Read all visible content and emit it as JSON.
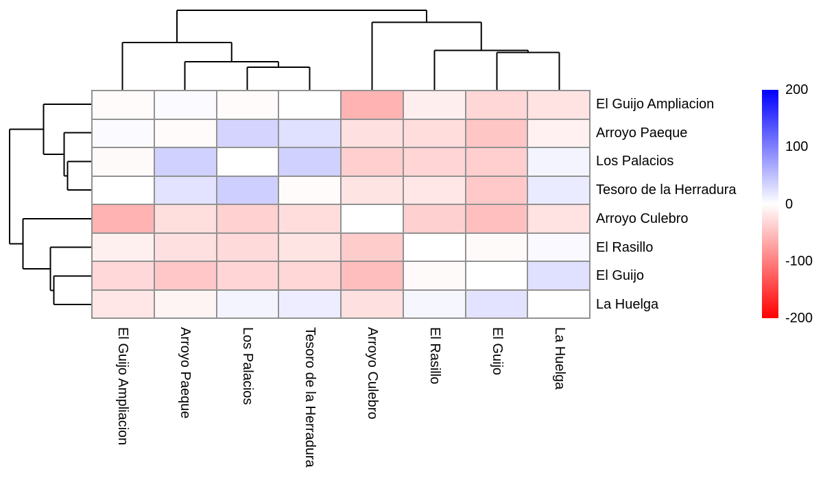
{
  "chart_data": {
    "type": "heatmap",
    "title": "",
    "rows": [
      "El Guijo Ampliacion",
      "Arroyo Paeque",
      "Los Palacios",
      "Tesoro de la Herradura",
      "Arroyo Culebro",
      "El Rasillo",
      "El Guijo",
      "La Huelga"
    ],
    "columns": [
      "El Guijo Ampliacion",
      "Arroyo Paeque",
      "Los Palacios",
      "Tesoro de la Herradura",
      "Arroyo Culebro",
      "El Rasillo",
      "El Guijo",
      "La Huelga"
    ],
    "values": [
      [
        -3,
        3,
        -3,
        0,
        -60,
        -13,
        -31,
        -22
      ],
      [
        3,
        -3,
        34,
        24,
        -24,
        -27,
        -45,
        -11
      ],
      [
        -4,
        36,
        0,
        36,
        -38,
        -33,
        -38,
        9
      ],
      [
        0,
        22,
        38,
        -3,
        -21,
        -19,
        -42,
        16
      ],
      [
        -60,
        -26,
        -36,
        -27,
        0,
        -37,
        -50,
        -23
      ],
      [
        -12,
        -24,
        -29,
        -21,
        -40,
        0,
        -4,
        5
      ],
      [
        -30,
        -44,
        -33,
        -31,
        -51,
        -4,
        0,
        24
      ],
      [
        -19,
        -9,
        9,
        14,
        -24,
        7,
        22,
        0
      ]
    ],
    "value_range": [
      -200,
      200
    ],
    "colorbar_ticks": [
      200,
      100,
      0,
      -100,
      -200
    ],
    "legend_position": "right",
    "colors": {
      "max_color": "#0000ff",
      "mid_color": "#ffffff",
      "min_color": "#ff0000",
      "grid_color": "#919191",
      "dendrogram_color": "#000000"
    },
    "col_dendrogram_segments": [
      [
        178.5,
        131,
        178.5,
        62
      ],
      [
        269.5,
        131,
        269.5,
        90
      ],
      [
        360.5,
        131,
        360.5,
        98
      ],
      [
        451.5,
        131,
        451.5,
        98
      ],
      [
        542.5,
        131,
        542.5,
        32.5
      ],
      [
        633.5,
        131,
        633.5,
        73.5
      ],
      [
        724.5,
        131,
        724.5,
        76.5
      ],
      [
        815.5,
        131,
        815.5,
        76.5
      ],
      [
        360.5,
        98,
        451.5,
        98
      ],
      [
        406,
        98,
        406,
        90
      ],
      [
        269.5,
        90,
        406,
        90
      ],
      [
        337.75,
        90,
        337.75,
        62
      ],
      [
        178.5,
        62,
        337.75,
        62
      ],
      [
        258,
        62,
        258,
        15
      ],
      [
        724.5,
        76.5,
        815.5,
        76.5
      ],
      [
        770,
        76.5,
        770,
        73.5
      ],
      [
        633.5,
        73.5,
        770,
        73.5
      ],
      [
        701.75,
        73.5,
        701.75,
        32.5
      ],
      [
        542.5,
        32.5,
        701.75,
        32.5
      ],
      [
        622,
        32.5,
        622,
        15
      ],
      [
        258,
        15,
        622,
        15
      ]
    ],
    "row_dendrogram_segments": [
      [
        133,
        152,
        63.5,
        152
      ],
      [
        133,
        193.5,
        93.5,
        193.5
      ],
      [
        133,
        235.5,
        98.5,
        235.5
      ],
      [
        133,
        277,
        98.5,
        277
      ],
      [
        133,
        319,
        33.5,
        319
      ],
      [
        133,
        360.5,
        73.5,
        360.5
      ],
      [
        133,
        402.5,
        78.5,
        402.5
      ],
      [
        133,
        444,
        78.5,
        444
      ],
      [
        98.5,
        235.5,
        98.5,
        277
      ],
      [
        98.5,
        256.5,
        93.5,
        256.5
      ],
      [
        93.5,
        193.5,
        93.5,
        256.5
      ],
      [
        93.5,
        225,
        63.5,
        225
      ],
      [
        63.5,
        152,
        63.5,
        225
      ],
      [
        63.5,
        188.5,
        14,
        188.5
      ],
      [
        78.5,
        402.5,
        78.5,
        444
      ],
      [
        78.5,
        423.5,
        73.5,
        423.5
      ],
      [
        73.5,
        360.5,
        73.5,
        423.5
      ],
      [
        73.5,
        392,
        33.5,
        392
      ],
      [
        33.5,
        319,
        33.5,
        392
      ],
      [
        33.5,
        355.5,
        14,
        355.5
      ],
      [
        14,
        188.5,
        14,
        355.5
      ]
    ]
  }
}
